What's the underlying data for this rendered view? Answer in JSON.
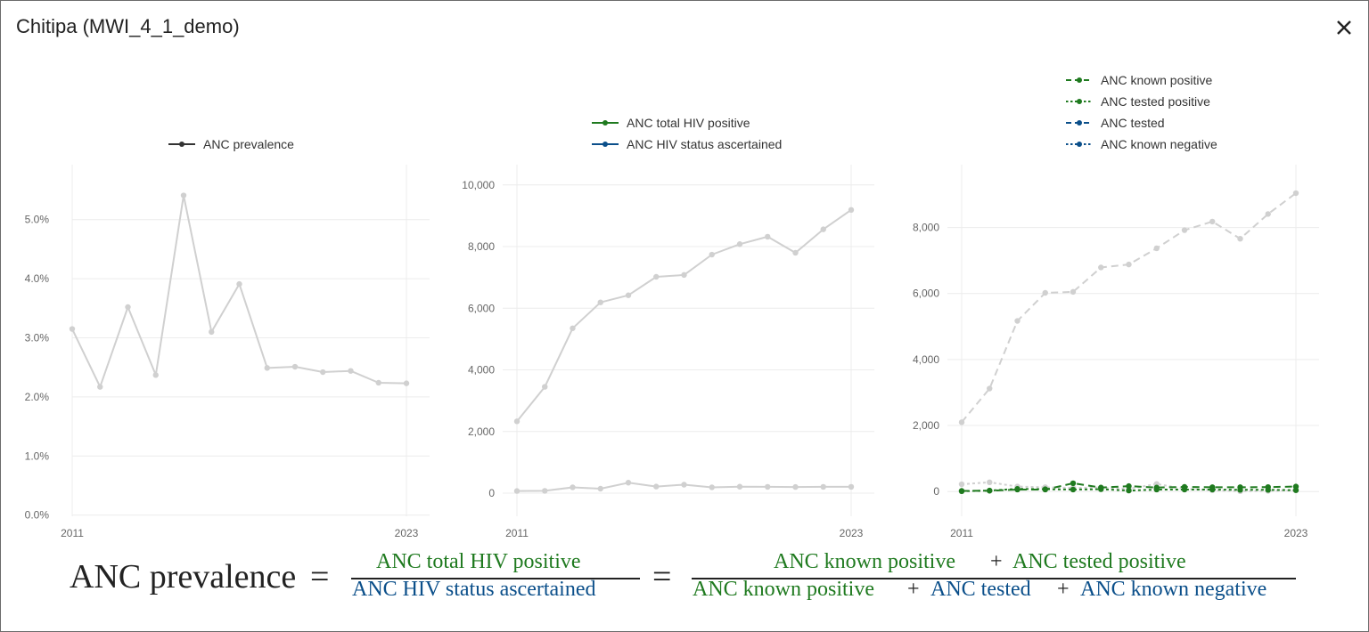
{
  "modal": {
    "title": "Chitipa (MWI_4_1_demo)",
    "close_icon": "close-icon"
  },
  "colors": {
    "green": "#1f7a1f",
    "blue": "#0b4f8a",
    "gray": "#d0d0d0",
    "dark": "#333333",
    "grid": "#ececec"
  },
  "chart_data": [
    {
      "type": "line",
      "x": [
        2011,
        2012,
        2013,
        2014,
        2015,
        2016,
        2017,
        2018,
        2019,
        2020,
        2021,
        2022,
        2023
      ],
      "x_ticks": [
        "2011",
        "2023"
      ],
      "y_ticks": [
        "0.0%",
        "1.0%",
        "2.0%",
        "3.0%",
        "4.0%",
        "5.0%"
      ],
      "ylim": [
        -0.0002,
        0.059
      ],
      "legend_position": "top",
      "legend": [
        {
          "label": "ANC prevalence",
          "color": "#333333",
          "dash": "solid"
        }
      ],
      "series": [
        {
          "values": [
            0.0315,
            0.0217,
            0.0352,
            0.0237,
            0.0541,
            0.031,
            0.0391,
            0.0249,
            0.0251,
            0.0242,
            0.0244,
            0.0224,
            0.0223
          ],
          "color": "#d0d0d0",
          "dash": "solid"
        }
      ]
    },
    {
      "type": "line",
      "x": [
        2011,
        2012,
        2013,
        2014,
        2015,
        2016,
        2017,
        2018,
        2019,
        2020,
        2021,
        2022,
        2023
      ],
      "x_ticks": [
        "2011",
        "2023"
      ],
      "y_ticks": [
        "0",
        "2,000",
        "4,000",
        "6,000",
        "8,000",
        "10,000"
      ],
      "ylim": [
        -750,
        10600
      ],
      "legend_position": "top",
      "legend": [
        {
          "label": "ANC total HIV positive",
          "color": "#1f7a1f",
          "dash": "solid"
        },
        {
          "label": "ANC HIV status ascertained",
          "color": "#0b4f8a",
          "dash": "solid"
        }
      ],
      "series": [
        {
          "values": [
            2330,
            3450,
            5350,
            6190,
            6420,
            7020,
            7080,
            7740,
            8080,
            8320,
            7800,
            8560,
            9190
          ],
          "color": "#d0d0d0",
          "dash": "solid"
        },
        {
          "values": [
            70,
            75,
            190,
            145,
            340,
            215,
            275,
            190,
            210,
            205,
            200,
            205,
            205
          ],
          "color": "#d0d0d0",
          "dash": "solid"
        }
      ]
    },
    {
      "type": "line",
      "x": [
        2011,
        2012,
        2013,
        2014,
        2015,
        2016,
        2017,
        2018,
        2019,
        2020,
        2021,
        2022,
        2023
      ],
      "x_ticks": [
        "2011",
        "2023"
      ],
      "y_ticks": [
        "0",
        "2,000",
        "4,000",
        "6,000",
        "8,000"
      ],
      "ylim": [
        -750,
        9850
      ],
      "legend_position": "top",
      "legend": [
        {
          "label": "ANC known positive",
          "color": "#1f7a1f",
          "dash": "dashed"
        },
        {
          "label": "ANC tested positive",
          "color": "#1f7a1f",
          "dash": "dotted"
        },
        {
          "label": "ANC tested",
          "color": "#0b4f8a",
          "dash": "dashed"
        },
        {
          "label": "ANC known negative",
          "color": "#0b4f8a",
          "dash": "dotted"
        }
      ],
      "series": [
        {
          "values": [
            2100,
            3120,
            5170,
            6020,
            6050,
            6790,
            6880,
            7370,
            7920,
            8180,
            7660,
            8410,
            9040
          ],
          "color": "#d0d0d0",
          "dash": "dashed"
        },
        {
          "values": [
            220,
            280,
            150,
            130,
            110,
            120,
            80,
            230,
            80,
            40,
            10,
            20,
            40
          ],
          "color": "#d0d0d0",
          "dash": "dotted"
        },
        {
          "values": [
            20,
            25,
            60,
            60,
            250,
            120,
            165,
            120,
            140,
            130,
            130,
            135,
            150
          ],
          "color": "#1f7a1f",
          "dash": "dashed"
        },
        {
          "values": [
            10,
            30,
            80,
            70,
            60,
            70,
            30,
            60,
            60,
            60,
            50,
            50,
            40
          ],
          "color": "#1f7a1f",
          "dash": "dotted"
        }
      ]
    }
  ],
  "formula": {
    "lhs": "ANC prevalence",
    "equals": "=",
    "frac1": {
      "numerator": "ANC total HIV positive",
      "denominator": "ANC HIV status ascertained"
    },
    "frac2": {
      "num_a": "ANC known positive",
      "num_plus": "+",
      "num_b": "ANC tested positive",
      "den_a": "ANC known positive",
      "den_plus1": "+",
      "den_b": "ANC tested",
      "den_plus2": "+",
      "den_c": "ANC known negative"
    }
  }
}
